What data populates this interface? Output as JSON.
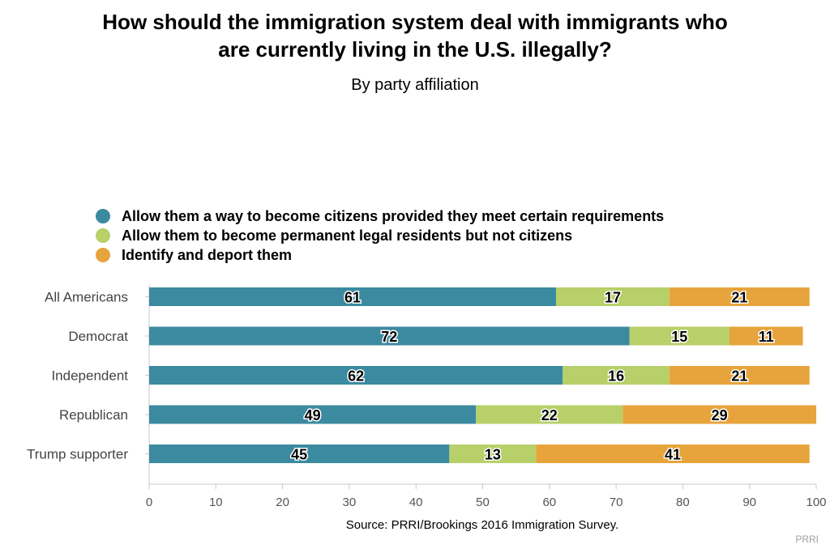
{
  "title_line1": "How should the immigration system deal with immigrants who",
  "title_line2": "are currently living in the U.S. illegally?",
  "subtitle": "By party affiliation",
  "source": "Source: PRRI/Brookings 2016 Immigration Survey.",
  "brand": "PRRI",
  "chart_data": {
    "type": "bar",
    "orientation": "horizontal",
    "stacked": true,
    "categories": [
      "All Americans",
      "Democrat",
      "Independent",
      "Republican",
      "Trump supporter"
    ],
    "series": [
      {
        "name": "Allow them a way to become citizens provided they meet certain requirements",
        "color": "#3c8aa0",
        "values": [
          61,
          72,
          62,
          49,
          45
        ]
      },
      {
        "name": "Allow them to become permanent legal residents but not citizens",
        "color": "#b8d06a",
        "values": [
          17,
          15,
          16,
          22,
          13
        ]
      },
      {
        "name": "Identify and deport them",
        "color": "#e8a43c",
        "values": [
          21,
          11,
          21,
          29,
          41
        ]
      }
    ],
    "xlim": [
      0,
      100
    ],
    "xticks": [
      0,
      10,
      20,
      30,
      40,
      50,
      60,
      70,
      80,
      90,
      100
    ],
    "legend_position": "top-left",
    "grid": false
  }
}
